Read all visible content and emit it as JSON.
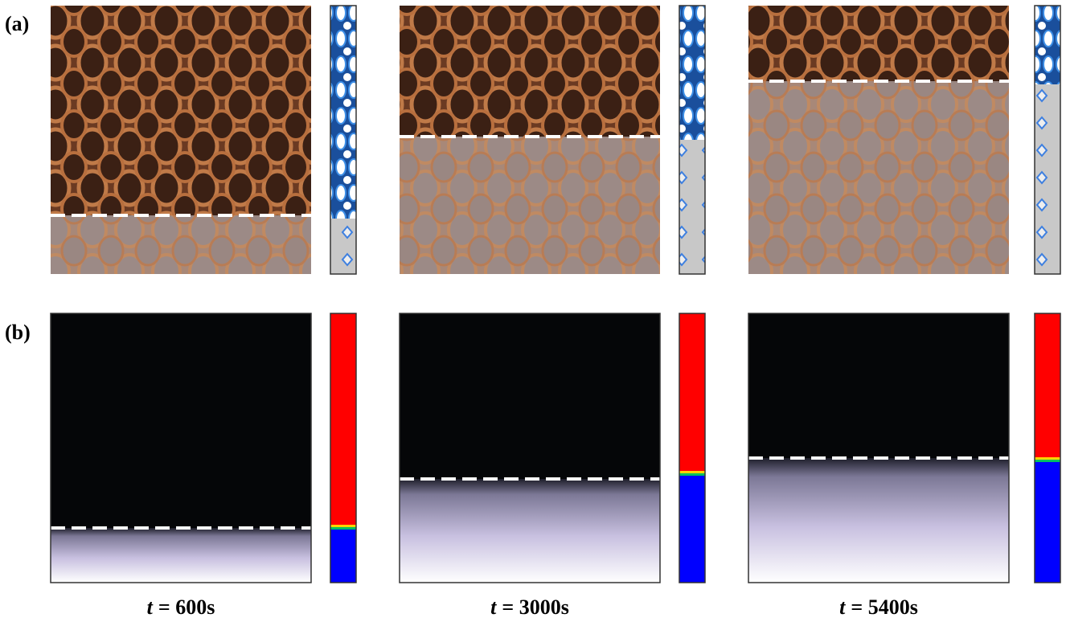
{
  "panel_labels": [
    "(a)",
    "(b)"
  ],
  "time_labels": {
    "variable": "t",
    "values": [
      "= 600s",
      "= 3000s",
      "= 5400s"
    ]
  }
}
